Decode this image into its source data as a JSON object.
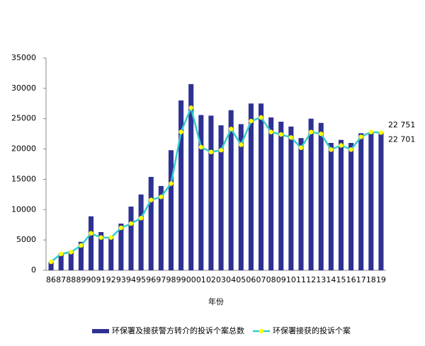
{
  "chart_data": {
    "type": "bar_line",
    "x_label": "年份",
    "categories": [
      "86",
      "87",
      "88",
      "89",
      "90",
      "91",
      "92",
      "93",
      "94",
      "95",
      "96",
      "97",
      "98",
      "99",
      "00",
      "01",
      "02",
      "03",
      "04",
      "05",
      "06",
      "07",
      "08",
      "09",
      "10",
      "11",
      "12",
      "13",
      "14",
      "15",
      "16",
      "17",
      "18",
      "19"
    ],
    "series": [
      {
        "name": "环保署及接获警方转介的投诉个案总数",
        "type": "bar",
        "color": "#2e3192",
        "values": [
          1400,
          2800,
          3200,
          4700,
          8900,
          6300,
          5500,
          7700,
          10500,
          12500,
          15400,
          13900,
          19800,
          28000,
          30700,
          25600,
          25500,
          23900,
          26400,
          24100,
          27500,
          27500,
          25200,
          24500,
          23700,
          21800,
          25000,
          24300,
          21000,
          21500,
          21000,
          22600,
          22800,
          22751
        ],
        "value_labels": [
          null,
          null,
          null,
          null,
          null,
          null,
          null,
          null,
          null,
          null,
          null,
          null,
          null,
          null,
          null,
          null,
          null,
          null,
          null,
          null,
          null,
          null,
          null,
          null,
          null,
          null,
          null,
          null,
          null,
          null,
          null,
          null,
          null,
          "22 751"
        ]
      },
      {
        "name": "环保署接获的投诉个案",
        "type": "line",
        "color": "#33cccc",
        "marker_color": "#ffff00",
        "values": [
          1400,
          2700,
          3000,
          4100,
          6100,
          5400,
          5400,
          7000,
          7700,
          8600,
          11600,
          12100,
          14300,
          22800,
          26800,
          20300,
          19500,
          19800,
          23300,
          20700,
          24600,
          25200,
          22800,
          22400,
          21900,
          20200,
          22800,
          22500,
          19900,
          20600,
          19900,
          22000,
          22800,
          22701
        ],
        "value_labels": [
          null,
          null,
          null,
          null,
          null,
          null,
          null,
          null,
          null,
          null,
          null,
          null,
          null,
          null,
          null,
          null,
          null,
          null,
          null,
          null,
          null,
          null,
          null,
          null,
          null,
          null,
          null,
          null,
          null,
          null,
          null,
          null,
          null,
          "22 701"
        ]
      }
    ],
    "ylim": [
      0,
      35000
    ],
    "yticks": [
      0,
      5000,
      10000,
      15000,
      20000,
      25000,
      30000,
      35000
    ],
    "legend": "bottom"
  }
}
